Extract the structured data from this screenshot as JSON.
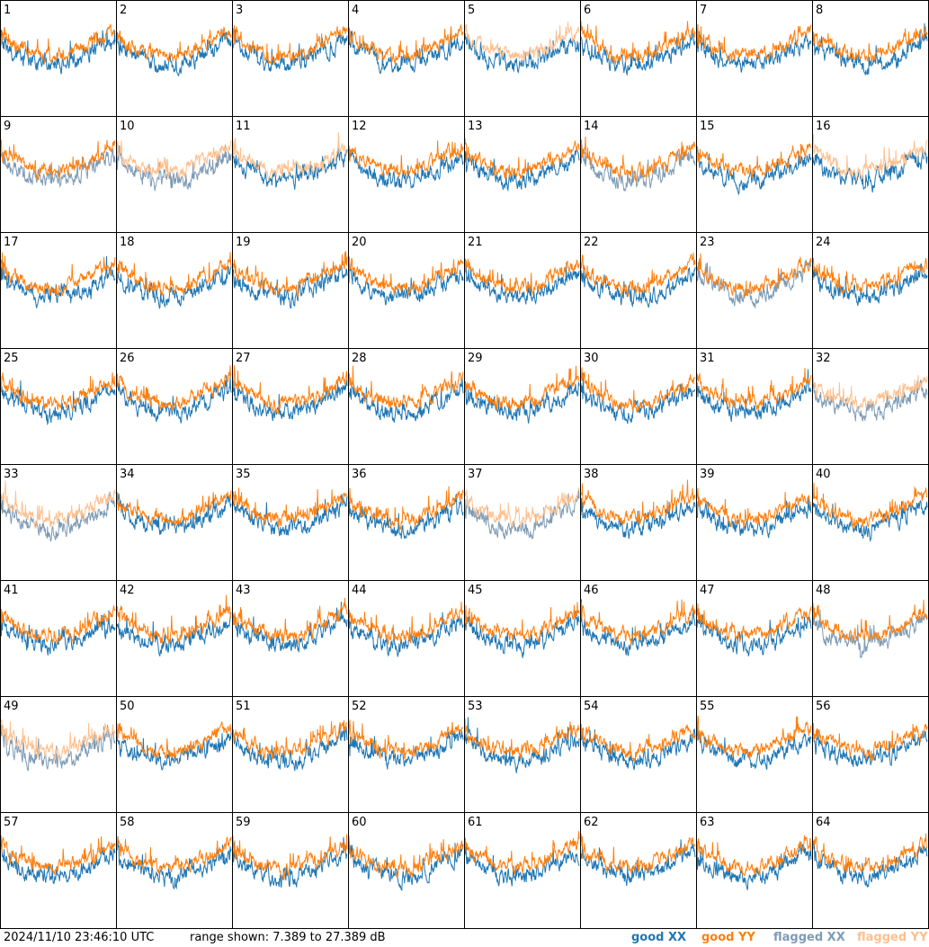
{
  "colors": {
    "good_xx": "#1f77b4",
    "good_yy": "#ff7f0e",
    "flagged_xx": "#7e9bb5",
    "flagged_yy": "#ffbf8c",
    "grid_line": "#000000"
  },
  "footer": {
    "timestamp": "2024/11/10 23:46:10 UTC",
    "range_text": "range shown: 7.389 to 27.389 dB"
  },
  "legend": {
    "good_xx": "good XX",
    "good_yy": "good YY",
    "flagged_xx": "flagged XX",
    "flagged_yy": "flagged YY"
  },
  "chart_data": {
    "type": "line",
    "layout": "8x8 small multiples",
    "y_range_db": [
      7.389,
      27.389
    ],
    "tiles": [
      {
        "label": "1",
        "xx": "good",
        "yy": "good"
      },
      {
        "label": "2",
        "xx": "good",
        "yy": "good"
      },
      {
        "label": "3",
        "xx": "good",
        "yy": "good"
      },
      {
        "label": "4",
        "xx": "good",
        "yy": "good"
      },
      {
        "label": "5",
        "xx": "good",
        "yy": "flagged"
      },
      {
        "label": "6",
        "xx": "good",
        "yy": "good"
      },
      {
        "label": "7",
        "xx": "good",
        "yy": "good"
      },
      {
        "label": "8",
        "xx": "good",
        "yy": "good"
      },
      {
        "label": "9",
        "xx": "flagged",
        "yy": "good"
      },
      {
        "label": "10",
        "xx": "flagged",
        "yy": "flagged"
      },
      {
        "label": "11",
        "xx": "good",
        "yy": "flagged"
      },
      {
        "label": "12",
        "xx": "good",
        "yy": "good"
      },
      {
        "label": "13",
        "xx": "good",
        "yy": "good"
      },
      {
        "label": "14",
        "xx": "flagged",
        "yy": "good"
      },
      {
        "label": "15",
        "xx": "good",
        "yy": "good"
      },
      {
        "label": "16",
        "xx": "good",
        "yy": "flagged"
      },
      {
        "label": "17",
        "xx": "good",
        "yy": "good"
      },
      {
        "label": "18",
        "xx": "good",
        "yy": "good"
      },
      {
        "label": "19",
        "xx": "good",
        "yy": "good"
      },
      {
        "label": "20",
        "xx": "good",
        "yy": "good"
      },
      {
        "label": "21",
        "xx": "good",
        "yy": "good"
      },
      {
        "label": "22",
        "xx": "good",
        "yy": "good"
      },
      {
        "label": "23",
        "xx": "flagged",
        "yy": "good"
      },
      {
        "label": "24",
        "xx": "good",
        "yy": "good"
      },
      {
        "label": "25",
        "xx": "good",
        "yy": "good"
      },
      {
        "label": "26",
        "xx": "good",
        "yy": "good"
      },
      {
        "label": "27",
        "xx": "good",
        "yy": "good"
      },
      {
        "label": "28",
        "xx": "good",
        "yy": "good"
      },
      {
        "label": "29",
        "xx": "good",
        "yy": "good"
      },
      {
        "label": "30",
        "xx": "good",
        "yy": "good"
      },
      {
        "label": "31",
        "xx": "good",
        "yy": "good"
      },
      {
        "label": "32",
        "xx": "flagged",
        "yy": "flagged"
      },
      {
        "label": "33",
        "xx": "flagged",
        "yy": "flagged"
      },
      {
        "label": "34",
        "xx": "good",
        "yy": "good"
      },
      {
        "label": "35",
        "xx": "good",
        "yy": "good"
      },
      {
        "label": "36",
        "xx": "good",
        "yy": "good"
      },
      {
        "label": "37",
        "xx": "flagged",
        "yy": "flagged"
      },
      {
        "label": "38",
        "xx": "good",
        "yy": "good"
      },
      {
        "label": "39",
        "xx": "good",
        "yy": "good"
      },
      {
        "label": "40",
        "xx": "good",
        "yy": "good"
      },
      {
        "label": "41",
        "xx": "good",
        "yy": "good"
      },
      {
        "label": "42",
        "xx": "good",
        "yy": "good"
      },
      {
        "label": "43",
        "xx": "good",
        "yy": "good"
      },
      {
        "label": "44",
        "xx": "good",
        "yy": "good"
      },
      {
        "label": "45",
        "xx": "good",
        "yy": "good"
      },
      {
        "label": "46",
        "xx": "good",
        "yy": "good"
      },
      {
        "label": "47",
        "xx": "good",
        "yy": "good"
      },
      {
        "label": "48",
        "xx": "flagged",
        "yy": "good"
      },
      {
        "label": "49",
        "xx": "flagged",
        "yy": "flagged"
      },
      {
        "label": "50",
        "xx": "good",
        "yy": "good"
      },
      {
        "label": "51",
        "xx": "good",
        "yy": "good"
      },
      {
        "label": "52",
        "xx": "good",
        "yy": "good"
      },
      {
        "label": "53",
        "xx": "good",
        "yy": "good"
      },
      {
        "label": "54",
        "xx": "good",
        "yy": "good"
      },
      {
        "label": "55",
        "xx": "good",
        "yy": "good"
      },
      {
        "label": "56",
        "xx": "good",
        "yy": "good"
      },
      {
        "label": "57",
        "xx": "good",
        "yy": "good"
      },
      {
        "label": "58",
        "xx": "good",
        "yy": "good"
      },
      {
        "label": "59",
        "xx": "good",
        "yy": "good"
      },
      {
        "label": "60",
        "xx": "good",
        "yy": "good"
      },
      {
        "label": "61",
        "xx": "good",
        "yy": "good"
      },
      {
        "label": "62",
        "xx": "good",
        "yy": "good"
      },
      {
        "label": "63",
        "xx": "good",
        "yy": "good"
      },
      {
        "label": "64",
        "xx": "good",
        "yy": "good"
      }
    ]
  }
}
